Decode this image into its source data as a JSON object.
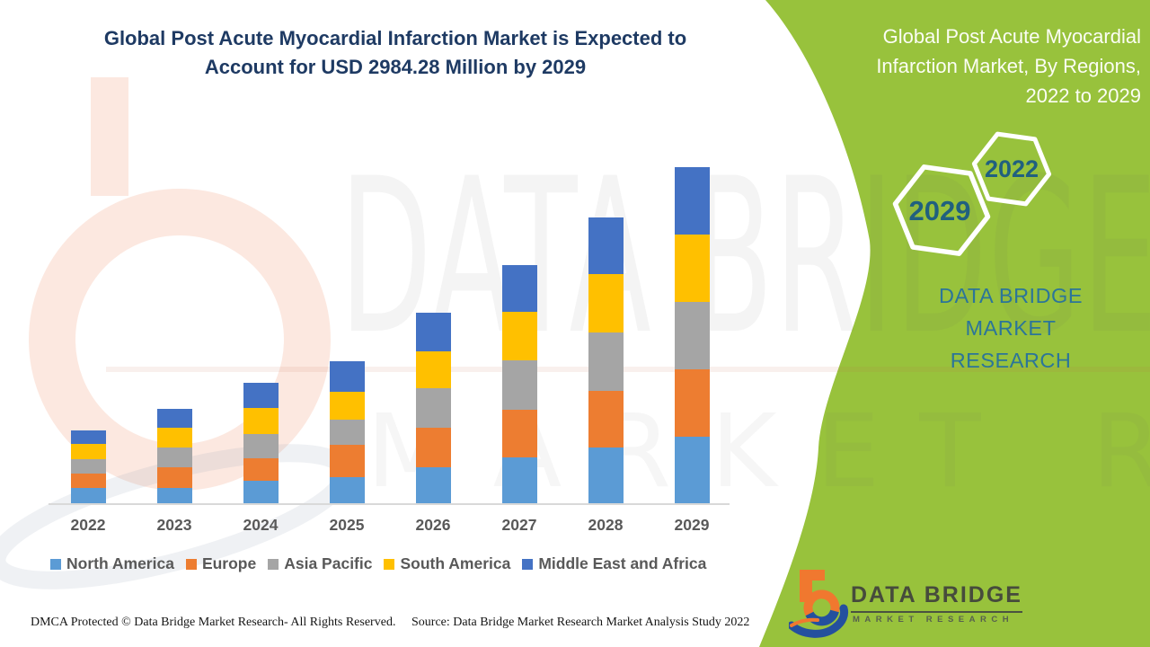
{
  "main_title": {
    "lines": [
      "Global Post Acute Myocardial Infarction Market is Expected to",
      "Account for USD 2984.28 Million by 2029"
    ],
    "color": "#1E3A63"
  },
  "chart_data": {
    "type": "bar",
    "stacked": true,
    "title": "Global Post Acute Myocardial Infarction Market is Expected to Account for USD 2984.28 Million by 2029",
    "unit": "USD Million",
    "categories": [
      "2022",
      "2023",
      "2024",
      "2025",
      "2026",
      "2027",
      "2028",
      "2029"
    ],
    "series": [
      {
        "name": "North America",
        "color": "#5B9BD5",
        "values": [
          141,
          147,
          211,
          239,
          326,
          411,
          499,
          594
        ]
      },
      {
        "name": "Europe",
        "color": "#ED7D31",
        "values": [
          133,
          183,
          199,
          287,
          350,
          424,
          504,
          598
        ]
      },
      {
        "name": "Asia Pacific",
        "color": "#A5A5A5",
        "values": [
          125,
          171,
          211,
          223,
          353,
          440,
          517,
          600
        ]
      },
      {
        "name": "South America",
        "color": "#FFC000",
        "values": [
          133,
          179,
          227,
          247,
          326,
          430,
          517,
          598
        ]
      },
      {
        "name": "Middle East and Africa",
        "color": "#4472C4",
        "values": [
          122,
          167,
          223,
          271,
          337,
          411,
          504,
          594.28
        ]
      }
    ],
    "totals_estimated": [
      654,
      847,
      1071,
      1267,
      1692,
      2116,
      2541,
      2984.28
    ],
    "ylim": [
      0,
      3000
    ],
    "gridlines": false,
    "legend_position": "bottom",
    "axis_line_color": "#D9D9D9"
  },
  "side_panel": {
    "bg_color": "#98C23C",
    "title": "Global Post Acute Myocardial Infarction Market, By Regions, 2022 to 2029",
    "hex_badges": [
      {
        "label": "2022"
      },
      {
        "label": "2029"
      }
    ],
    "brand_line1": "DATA BRIDGE MARKET",
    "brand_line2": "RESEARCH",
    "brand_color": "#2C7599"
  },
  "logo": {
    "line1": "DATA BRIDGE",
    "line2": "MARKET RESEARCH"
  },
  "watermark": {
    "line1": "DATA BRIDGE",
    "line2": "MARKET RESEARCH"
  },
  "footer": {
    "left": "DMCA Protected © Data Bridge Market Research- All Rights Reserved.",
    "right": "Source: Data Bridge Market Research Market Analysis Study 2022"
  }
}
